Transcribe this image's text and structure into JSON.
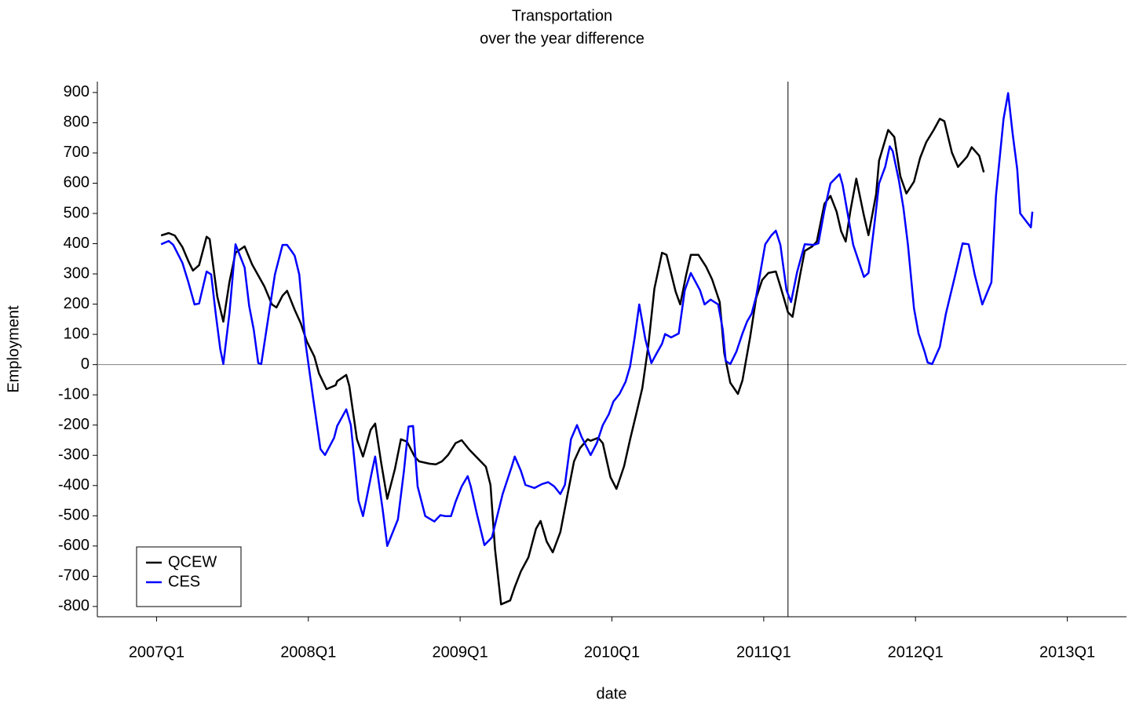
{
  "chart_data": {
    "type": "line",
    "title": "Transportation",
    "subtitle": "over the year difference",
    "x_label": "date",
    "y_label": "Employment",
    "xlim": [
      2006.61,
      2013.39
    ],
    "ylim": [
      -834,
      936
    ],
    "xticks": [
      {
        "value": 2007,
        "label": "2007Q1"
      },
      {
        "value": 2008,
        "label": "2008Q1"
      },
      {
        "value": 2009,
        "label": "2009Q1"
      },
      {
        "value": 2010,
        "label": "2010Q1"
      },
      {
        "value": 2011,
        "label": "2011Q1"
      },
      {
        "value": 2012,
        "label": "2012Q1"
      },
      {
        "value": 2013,
        "label": "2013Q1"
      }
    ],
    "yticks": [
      -800,
      -700,
      -600,
      -500,
      -400,
      -300,
      -200,
      -100,
      0,
      100,
      200,
      300,
      400,
      500,
      600,
      700,
      800,
      900
    ],
    "hline": 0,
    "vline": 2011.16,
    "legend": "lower left",
    "series": [
      {
        "name": "QCEW",
        "color": "#000000",
        "x": [
          2007.03,
          2007.08,
          2007.12,
          2007.17,
          2007.21,
          2007.24,
          2007.28,
          2007.33,
          2007.35,
          2007.4,
          2007.44,
          2007.48,
          2007.52,
          2007.58,
          2007.63,
          2007.71,
          2007.76,
          2007.79,
          2007.83,
          2007.86,
          2007.91,
          2007.95,
          2007.99,
          2008.04,
          2008.07,
          2008.12,
          2008.18,
          2008.19,
          2008.25,
          2008.27,
          2008.32,
          2008.36,
          2008.41,
          2008.44,
          2008.48,
          2008.52,
          2008.57,
          2008.61,
          2008.65,
          2008.7,
          2008.73,
          2008.8,
          2008.84,
          2008.88,
          2008.92,
          2008.97,
          2009.01,
          2009.06,
          2009.12,
          2009.17,
          2009.2,
          2009.23,
          2009.27,
          2009.33,
          2009.36,
          2009.4,
          2009.45,
          2009.5,
          2009.53,
          2009.57,
          2009.61,
          2009.66,
          2009.71,
          2009.75,
          2009.79,
          2009.84,
          2009.86,
          2009.91,
          2009.94,
          2009.99,
          2010.03,
          2010.08,
          2010.12,
          2010.16,
          2010.2,
          2010.24,
          2010.28,
          2010.33,
          2010.36,
          2010.42,
          2010.45,
          2010.49,
          2010.52,
          2010.57,
          2010.62,
          2010.66,
          2010.71,
          2010.74,
          2010.78,
          2010.83,
          2010.86,
          2010.91,
          2010.95,
          2010.99,
          2011.03,
          2011.08,
          2011.11,
          2011.16,
          2011.19,
          2011.24,
          2011.27,
          2011.32,
          2011.35,
          2011.4,
          2011.44,
          2011.48,
          2011.51,
          2011.54,
          2011.57,
          2011.61,
          2011.66,
          2011.69,
          2011.74,
          2011.76,
          2011.82,
          2011.86,
          2011.9,
          2011.94,
          2011.99,
          2012.03,
          2012.07,
          2012.12,
          2012.16,
          2012.19,
          2012.24,
          2012.28,
          2012.34,
          2012.37,
          2012.42,
          2012.45
        ],
        "values": [
          427,
          435,
          427,
          389,
          342,
          311,
          329,
          423,
          415,
          225,
          142,
          272,
          370,
          391,
          331,
          259,
          199,
          189,
          228,
          244,
          181,
          137,
          77,
          26,
          -29,
          -81,
          -68,
          -55,
          -34,
          -71,
          -247,
          -304,
          -216,
          -195,
          -325,
          -444,
          -346,
          -247,
          -255,
          -304,
          -320,
          -328,
          -330,
          -320,
          -299,
          -260,
          -250,
          -281,
          -312,
          -338,
          -398,
          -611,
          -793,
          -780,
          -736,
          -684,
          -637,
          -543,
          -517,
          -585,
          -621,
          -554,
          -424,
          -320,
          -276,
          -247,
          -252,
          -242,
          -260,
          -372,
          -411,
          -336,
          -247,
          -164,
          -78,
          64,
          251,
          370,
          363,
          241,
          199,
          298,
          363,
          363,
          324,
          282,
          207,
          38,
          -60,
          -97,
          -52,
          90,
          220,
          280,
          303,
          308,
          259,
          173,
          158,
          298,
          376,
          391,
          407,
          532,
          558,
          506,
          441,
          407,
          506,
          615,
          493,
          428,
          563,
          675,
          776,
          753,
          623,
          566,
          605,
          683,
          735,
          776,
          813,
          805,
          701,
          654,
          688,
          719,
          691,
          636
        ]
      },
      {
        "name": "CES",
        "color": "#0000ff",
        "x": [
          2007.03,
          2007.08,
          2007.11,
          2007.17,
          2007.21,
          2007.25,
          2007.28,
          2007.33,
          2007.36,
          2007.39,
          2007.42,
          2007.44,
          2007.48,
          2007.52,
          2007.58,
          2007.61,
          2007.64,
          2007.67,
          2007.69,
          2007.74,
          2007.78,
          2007.83,
          2007.86,
          2007.9,
          2007.91,
          2007.94,
          2007.98,
          2008.03,
          2008.08,
          2008.11,
          2008.17,
          2008.19,
          2008.25,
          2008.28,
          2008.33,
          2008.36,
          2008.42,
          2008.44,
          2008.49,
          2008.52,
          2008.59,
          2008.63,
          2008.66,
          2008.69,
          2008.72,
          2008.77,
          2008.83,
          2008.87,
          2008.9,
          2008.94,
          2008.97,
          2009.01,
          2009.05,
          2009.07,
          2009.11,
          2009.16,
          2009.21,
          2009.28,
          2009.34,
          2009.36,
          2009.4,
          2009.43,
          2009.49,
          2009.54,
          2009.58,
          2009.62,
          2009.66,
          2009.69,
          2009.73,
          2009.77,
          2009.8,
          2009.86,
          2009.9,
          2009.94,
          2009.98,
          2010.01,
          2010.05,
          2010.09,
          2010.12,
          2010.15,
          2010.18,
          2010.22,
          2010.26,
          2010.29,
          2010.33,
          2010.35,
          2010.39,
          2010.44,
          2010.48,
          2010.52,
          2010.58,
          2010.61,
          2010.65,
          2010.7,
          2010.73,
          2010.75,
          2010.78,
          2010.82,
          2010.86,
          2010.89,
          2010.92,
          2010.95,
          2011.01,
          2011.05,
          2011.08,
          2011.11,
          2011.15,
          2011.18,
          2011.22,
          2011.27,
          2011.33,
          2011.36,
          2011.4,
          2011.44,
          2011.5,
          2011.52,
          2011.56,
          2011.59,
          2011.66,
          2011.69,
          2011.73,
          2011.76,
          2011.8,
          2011.83,
          2011.85,
          2011.89,
          2011.92,
          2011.95,
          2011.99,
          2012.02,
          2012.06,
          2012.08,
          2012.11,
          2012.16,
          2012.2,
          2012.26,
          2012.31,
          2012.35,
          2012.39,
          2012.44,
          2012.5,
          2012.53,
          2012.58,
          2012.61,
          2012.64,
          2012.67,
          2012.69,
          2012.76,
          2012.77
        ],
        "values": [
          398,
          409,
          396,
          337,
          272,
          199,
          202,
          308,
          298,
          168,
          51,
          2,
          168,
          398,
          321,
          194,
          116,
          5,
          2,
          168,
          298,
          396,
          396,
          368,
          360,
          298,
          77,
          -105,
          -279,
          -299,
          -242,
          -203,
          -148,
          -200,
          -449,
          -501,
          -351,
          -304,
          -480,
          -600,
          -512,
          -351,
          -205,
          -203,
          -403,
          -501,
          -519,
          -498,
          -501,
          -501,
          -454,
          -403,
          -369,
          -403,
          -493,
          -597,
          -571,
          -428,
          -337,
          -304,
          -351,
          -398,
          -408,
          -395,
          -389,
          -403,
          -428,
          -398,
          -247,
          -200,
          -239,
          -299,
          -260,
          -200,
          -164,
          -122,
          -97,
          -57,
          -5,
          90,
          199,
          85,
          5,
          33,
          69,
          101,
          90,
          103,
          246,
          303,
          246,
          199,
          215,
          199,
          116,
          12,
          2,
          43,
          103,
          142,
          168,
          225,
          398,
          427,
          443,
          396,
          246,
          207,
          306,
          398,
          396,
          401,
          511,
          599,
          630,
          594,
          480,
          396,
          290,
          303,
          467,
          599,
          654,
          722,
          706,
          610,
          519,
          396,
          186,
          103,
          43,
          7,
          2,
          59,
          168,
          293,
          401,
          398,
          298,
          199,
          272,
          558,
          813,
          898,
          763,
          646,
          500,
          454,
          506
        ]
      }
    ]
  }
}
